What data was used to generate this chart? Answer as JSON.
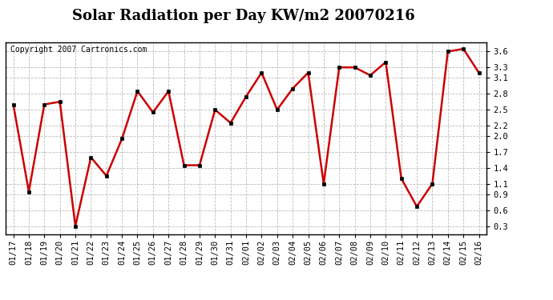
{
  "title": "Solar Radiation per Day KW/m2 20070216",
  "copyright": "Copyright 2007 Cartronics.com",
  "dates": [
    "01/17",
    "01/18",
    "01/19",
    "01/20",
    "01/21",
    "01/22",
    "01/23",
    "01/24",
    "01/25",
    "01/26",
    "01/27",
    "01/28",
    "01/29",
    "01/30",
    "01/31",
    "02/01",
    "02/02",
    "02/03",
    "02/04",
    "02/05",
    "02/06",
    "02/07",
    "02/08",
    "02/09",
    "02/10",
    "02/11",
    "02/12",
    "02/13",
    "02/14",
    "02/15",
    "02/16"
  ],
  "values": [
    2.6,
    0.95,
    2.6,
    2.65,
    0.3,
    1.6,
    1.25,
    1.95,
    2.85,
    2.45,
    2.85,
    1.45,
    1.45,
    2.5,
    2.25,
    2.75,
    3.2,
    2.5,
    2.9,
    3.2,
    1.1,
    3.3,
    3.3,
    3.15,
    3.4,
    1.2,
    0.67,
    1.1,
    3.6,
    3.65,
    3.2
  ],
  "line_color": "#cc0000",
  "marker_color": "#000000",
  "bg_color": "#ffffff",
  "plot_bg_color": "#ffffff",
  "grid_color": "#bbbbbb",
  "ylim": [
    0.15,
    3.78
  ],
  "yticks": [
    0.3,
    0.6,
    0.9,
    1.1,
    1.4,
    1.7,
    2.0,
    2.2,
    2.5,
    2.8,
    3.1,
    3.3,
    3.6
  ],
  "title_fontsize": 13,
  "copyright_fontsize": 7,
  "tick_fontsize": 7.5
}
